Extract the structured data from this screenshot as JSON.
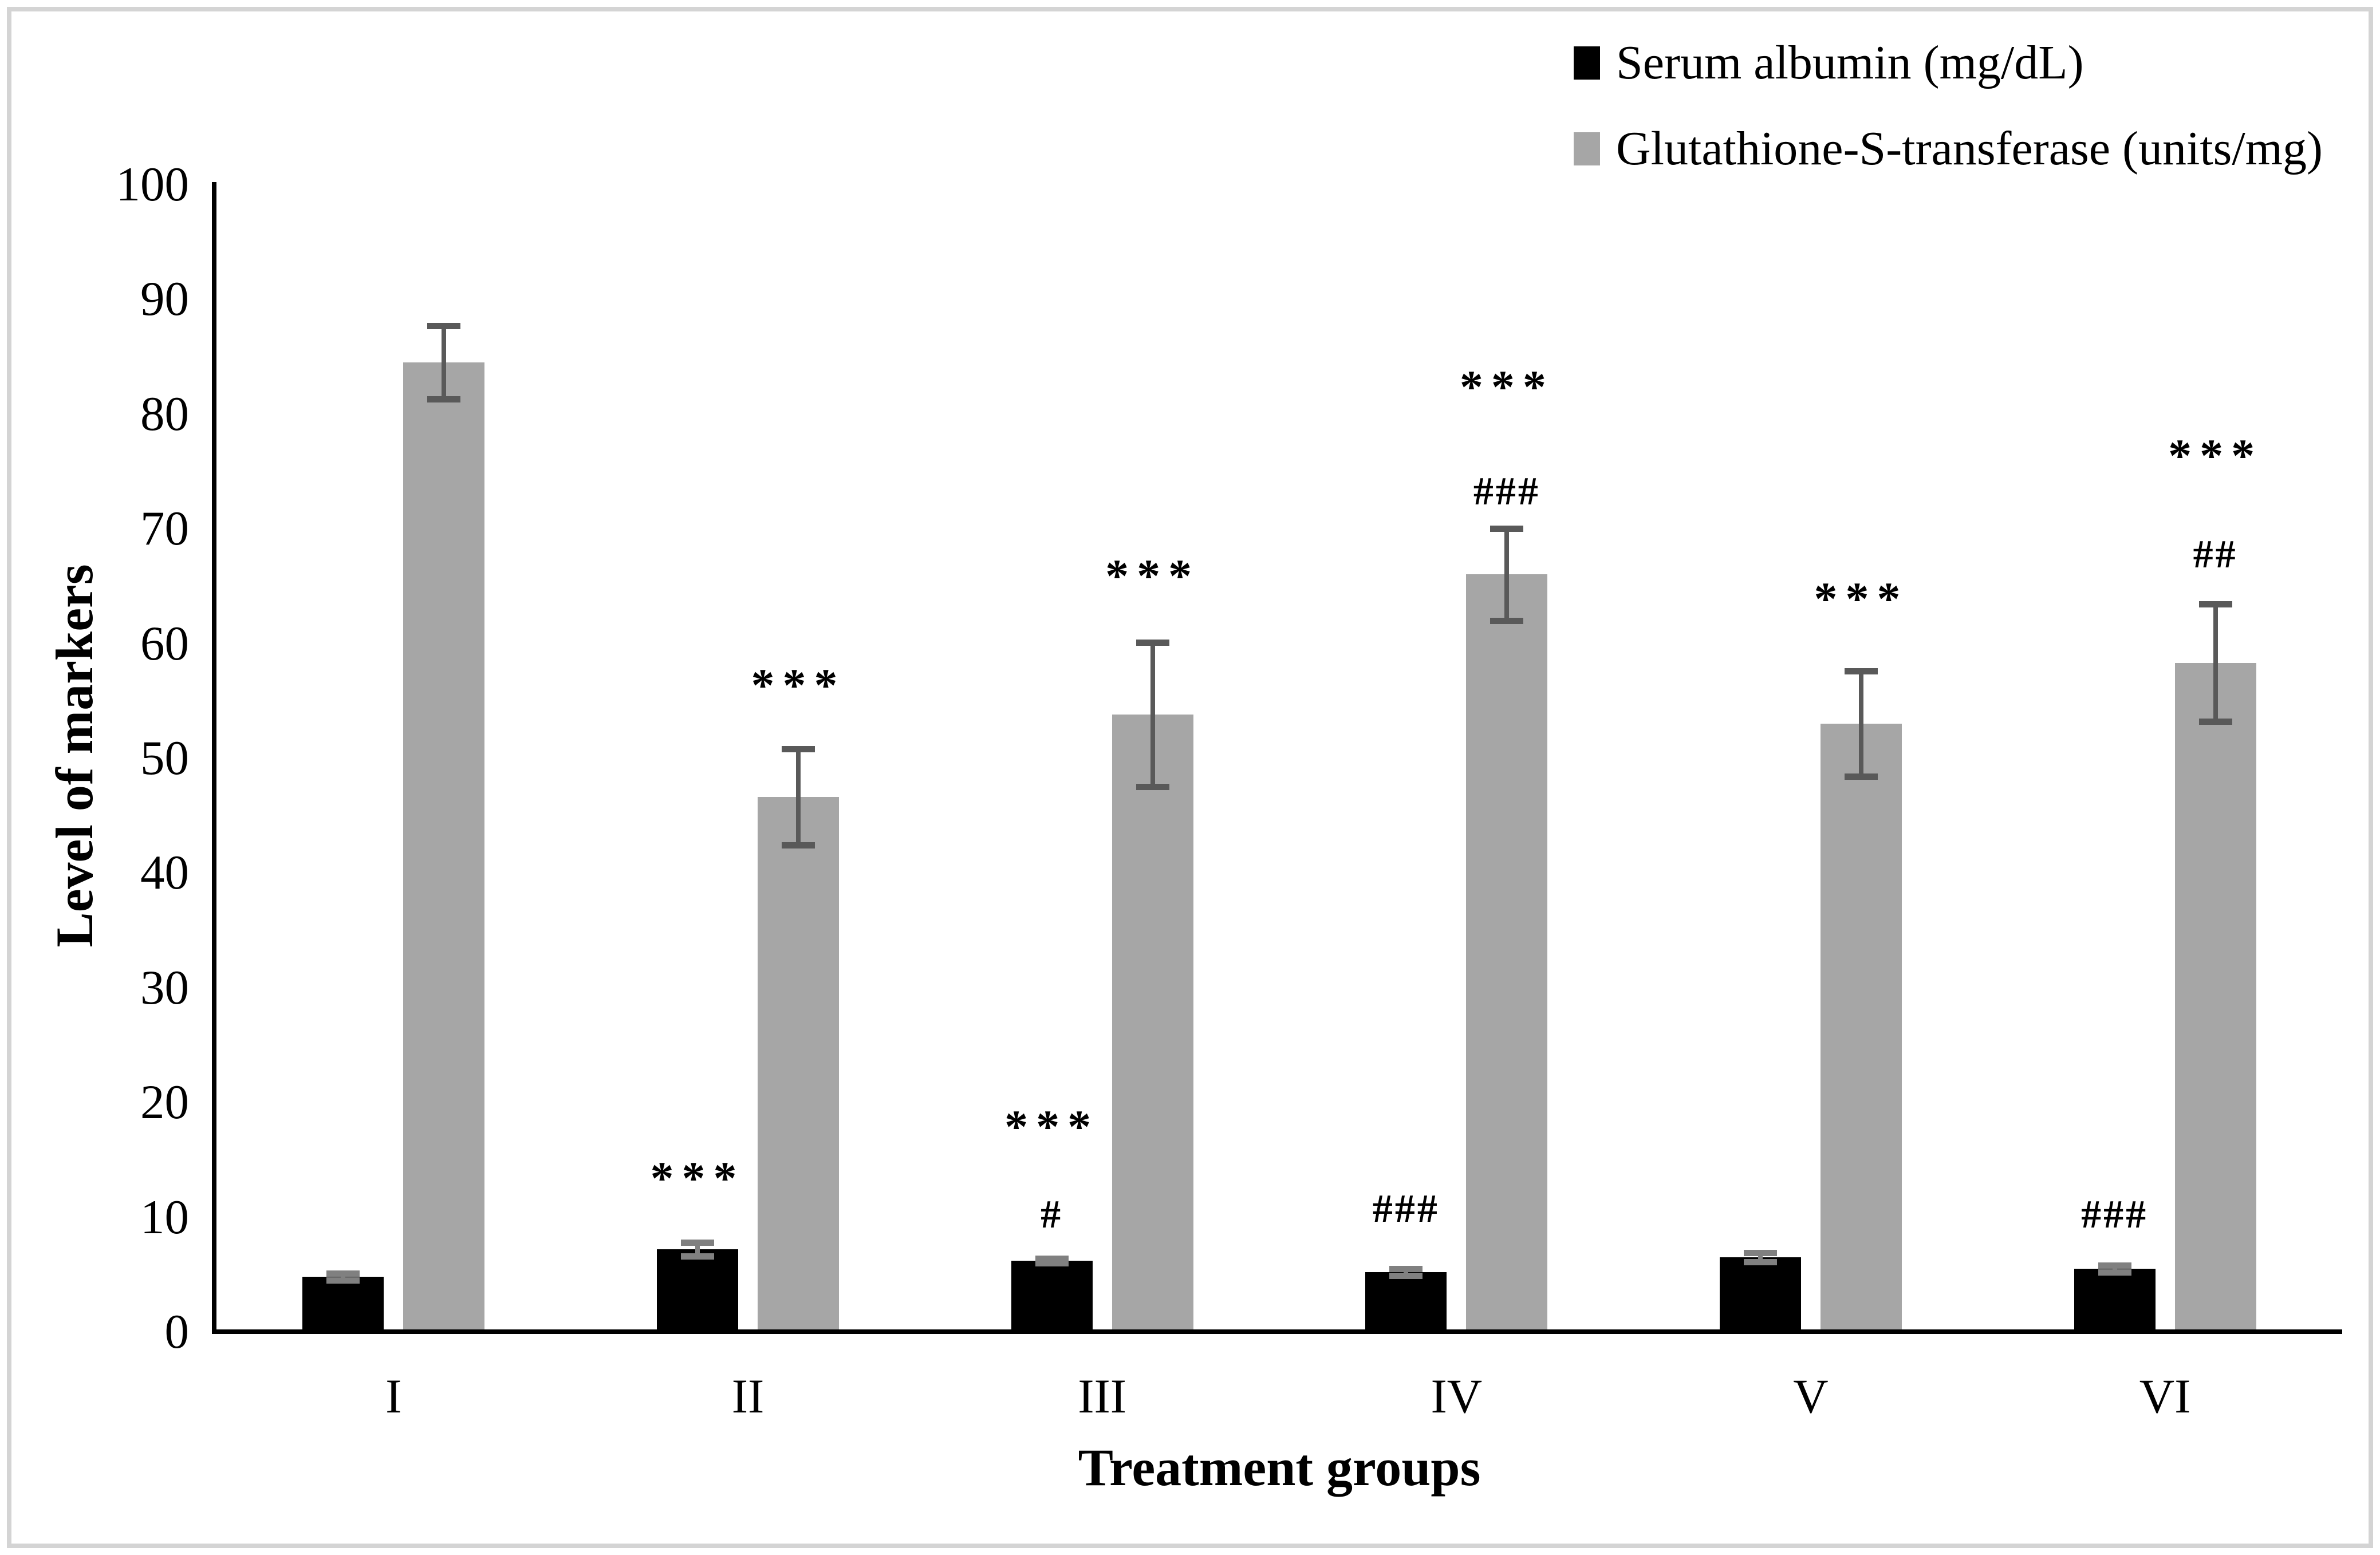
{
  "figure": {
    "background_color": "#ffffff",
    "border_color": "#d4d4d4"
  },
  "chart_data": {
    "type": "bar",
    "title": "",
    "xlabel": "Treatment groups",
    "ylabel": "Level of markers",
    "ylim": [
      0,
      100
    ],
    "ytick_step": 10,
    "ytick_labels": [
      "0",
      "10",
      "20",
      "30",
      "40",
      "50",
      "60",
      "70",
      "80",
      "90",
      "100"
    ],
    "grid": "off",
    "legend_position": "top-right",
    "categories": [
      "I",
      "II",
      "III",
      "IV",
      "V",
      "VI"
    ],
    "series": [
      {
        "name": "Serum albumin (mg/dL)",
        "color": "#000000",
        "error_color": "#808080",
        "values": [
          4.6,
          7.0,
          6.0,
          5.0,
          6.3,
          5.3
        ],
        "errors": [
          0.3,
          0.6,
          0.2,
          0.3,
          0.4,
          0.3
        ]
      },
      {
        "name": "Glutathione-S-transferase (units/mg)",
        "color": "#a6a6a6",
        "error_color": "#595959",
        "values": [
          84.3,
          46.4,
          53.6,
          65.8,
          52.8,
          58.1
        ],
        "errors": [
          3.2,
          4.2,
          6.3,
          4.0,
          4.6,
          5.1
        ]
      }
    ],
    "annotations": [
      {
        "category": "II",
        "series": 0,
        "text": "***",
        "y": 14
      },
      {
        "category": "III",
        "series": 0,
        "text": "***",
        "y": 18.5
      },
      {
        "category": "III",
        "series": 0,
        "text": "#",
        "y": 10
      },
      {
        "category": "IV",
        "series": 0,
        "text": "###",
        "y": 10.5
      },
      {
        "category": "VI",
        "series": 0,
        "text": "###",
        "y": 10
      },
      {
        "category": "II",
        "series": 1,
        "text": "***",
        "y": 57
      },
      {
        "category": "III",
        "series": 1,
        "text": "***",
        "y": 66.5
      },
      {
        "category": "IV",
        "series": 1,
        "text": "***",
        "y": 83
      },
      {
        "category": "IV",
        "series": 1,
        "text": "###",
        "y": 73
      },
      {
        "category": "V",
        "series": 1,
        "text": "***",
        "y": 64.5
      },
      {
        "category": "VI",
        "series": 1,
        "text": "***",
        "y": 77
      },
      {
        "category": "VI",
        "series": 1,
        "text": "##",
        "y": 67.5
      }
    ]
  }
}
